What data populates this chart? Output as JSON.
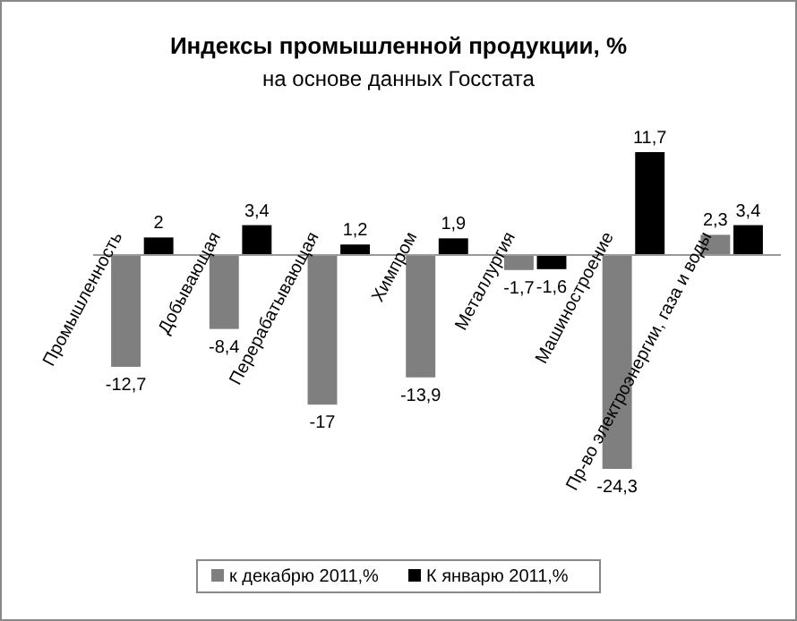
{
  "chart_data": {
    "type": "bar",
    "title": "Индексы промышленной продукции, %",
    "subtitle": "на основе данных Госстата",
    "categories": [
      "Промышленность",
      "Добывающая",
      "Перерабатывающая",
      "Химпром",
      "Металлургия",
      "Машиностроение",
      "Пр-во электроэнергии, газа и воды"
    ],
    "relative": false,
    "series": [
      {
        "name": "к декабрю 2011,%",
        "color": "#7f7f7f",
        "values": [
          -12.7,
          -8.4,
          -17,
          -13.9,
          -1.7,
          -24.3,
          2.3
        ],
        "value_labels": [
          "-12,7",
          "-8,4",
          "-17",
          "-13,9",
          "-1,7",
          "-24,3",
          "2,3"
        ]
      },
      {
        "name": "К январю 2011,%",
        "color": "#000000",
        "values": [
          2,
          3.4,
          1.2,
          1.9,
          -1.6,
          11.7,
          3.4
        ],
        "value_labels": [
          "2",
          "3,4",
          "1,2",
          "1,9",
          "-1,6",
          "11,7",
          "3,4"
        ]
      }
    ],
    "legend": "bottom"
  }
}
